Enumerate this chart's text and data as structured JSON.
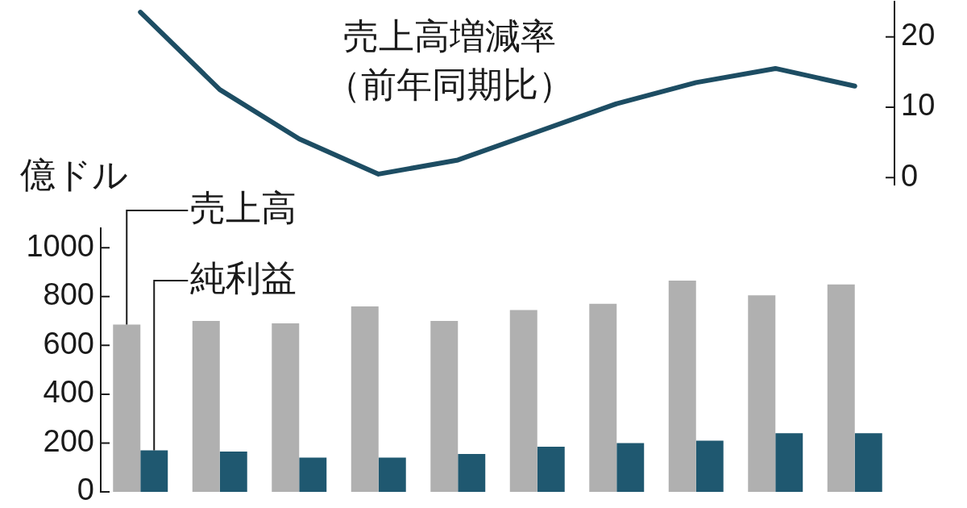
{
  "chart_data": [
    {
      "type": "line",
      "categories": [
        null,
        null,
        null,
        null,
        null,
        null,
        null,
        null,
        null,
        null
      ],
      "ylim": [
        -1,
        25
      ],
      "yticks": [
        0,
        10,
        20
      ],
      "marker": "none",
      "line_style": "solid",
      "series": [
        {
          "name": "売上高増減率（前年同期比）",
          "color": "#1d4d63",
          "values": [
            23.5,
            12.5,
            5.5,
            0.5,
            2.5,
            6.5,
            10.5,
            13.5,
            15.5,
            13
          ]
        }
      ]
    },
    {
      "type": "bar",
      "categories": [
        null,
        null,
        null,
        null,
        null,
        null,
        null,
        null,
        null,
        null
      ],
      "ylabel": "億ドル",
      "ylim": [
        0,
        1080
      ],
      "yticks": [
        0,
        200,
        400,
        600,
        800,
        1000
      ],
      "series": [
        {
          "name": "売上高",
          "color": "#b0b0b0",
          "values": [
            685,
            700,
            690,
            760,
            700,
            745,
            770,
            865,
            805,
            850
          ]
        },
        {
          "name": "純利益",
          "color": "#1f5870",
          "values": [
            170,
            165,
            140,
            140,
            155,
            185,
            200,
            210,
            240,
            240
          ]
        }
      ]
    }
  ]
}
